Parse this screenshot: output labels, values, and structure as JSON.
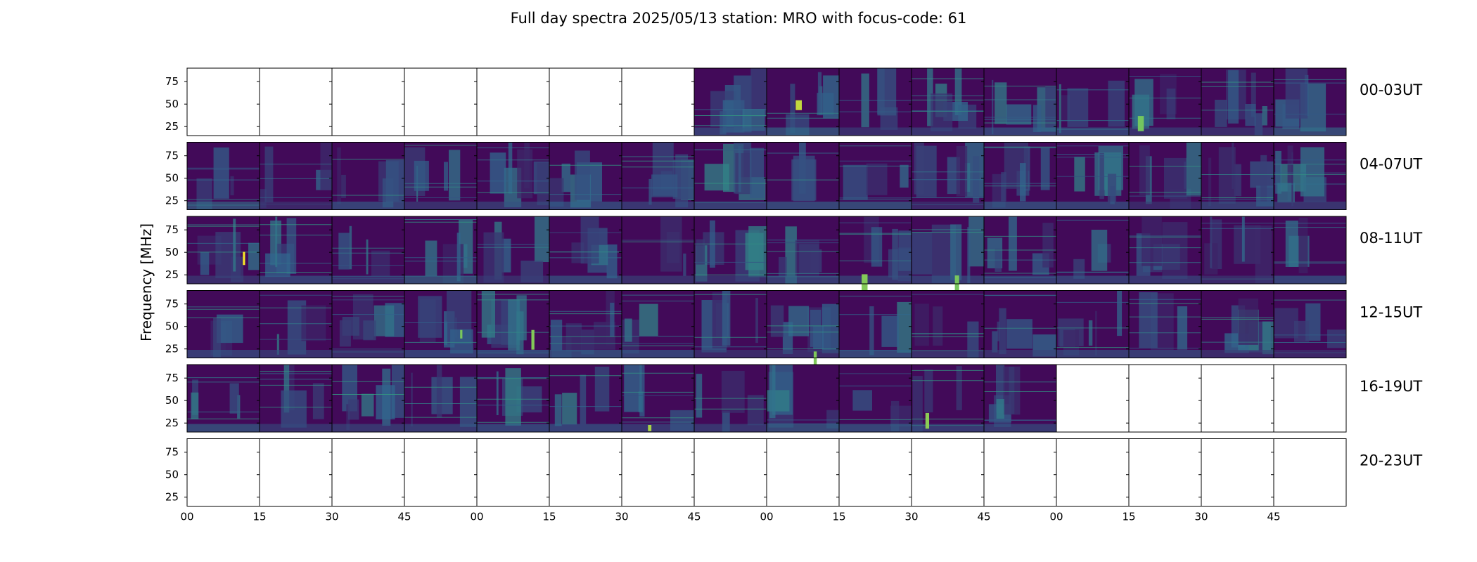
{
  "chart_data": {
    "type": "heatmap",
    "title": "Full day spectra 2025/05/13 station: MRO with focus-code: 61",
    "ylabel": "Frequency [MHz]",
    "ylim": [
      15,
      90
    ],
    "y_ticks": [
      "25",
      "50",
      "75"
    ],
    "x_ticks": [
      "00",
      "15",
      "30",
      "45",
      "00",
      "15",
      "30",
      "45",
      "00",
      "15",
      "30",
      "45",
      "00",
      "15",
      "30",
      "45"
    ],
    "rows": [
      {
        "label": "00-03UT",
        "data_start": 7,
        "data_end": 16
      },
      {
        "label": "04-07UT",
        "data_start": 0,
        "data_end": 16
      },
      {
        "label": "08-11UT",
        "data_start": 0,
        "data_end": 16
      },
      {
        "label": "12-15UT",
        "data_start": 0,
        "data_end": 16
      },
      {
        "label": "16-19UT",
        "data_start": 0,
        "data_end": 12
      },
      {
        "label": "20-23UT",
        "data_start": 0,
        "data_end": 0
      }
    ],
    "colormap": [
      "#440154",
      "#31688e",
      "#35b779",
      "#fde725"
    ]
  }
}
